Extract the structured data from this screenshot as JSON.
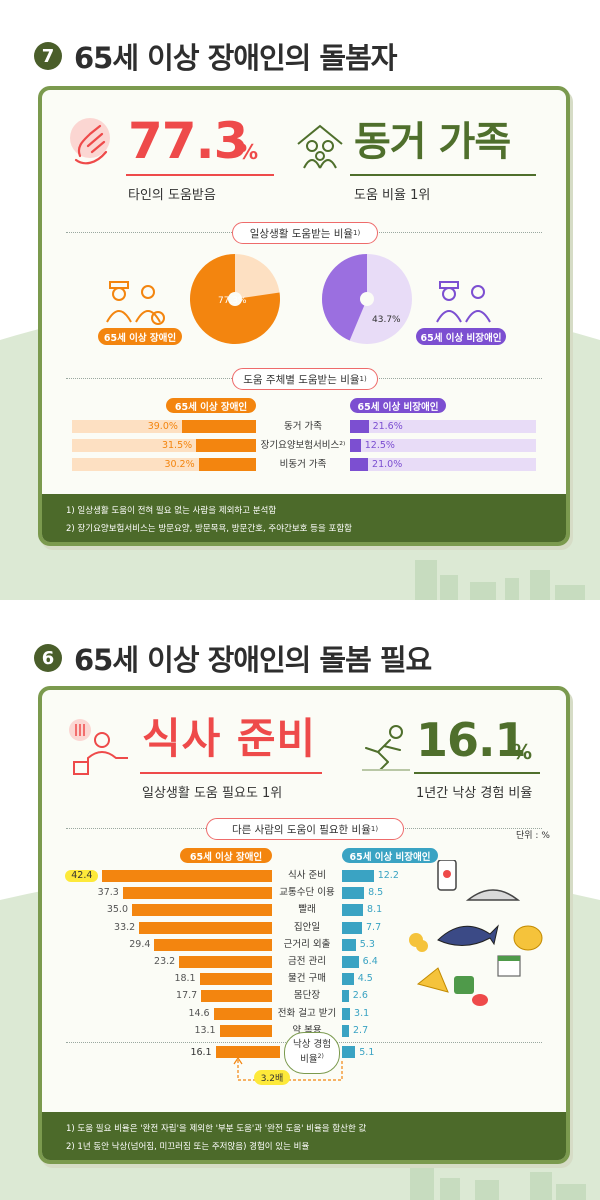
{
  "section7": {
    "number": "7",
    "title": "65세 이상 장애인의 돌봄자",
    "stat_left": {
      "value": "77.3",
      "unit": "%",
      "caption": "타인의 도움받음"
    },
    "stat_right": {
      "value": "동거 가족",
      "caption": "도움 비율 1위"
    },
    "pie_section_title": "일상생활 도움받는 비율",
    "pie_section_note": "1)",
    "pies": [
      {
        "label": "65세 이상 장애인",
        "value_label": "77.3%",
        "value": 77.3,
        "color": "#f3850f",
        "rest_color": "#fde0c2"
      },
      {
        "label": "65세 이상 비장애인",
        "value_label": "43.7%",
        "value": 43.7,
        "color": "#9b6fe0",
        "rest_color": "#e8dcf7"
      }
    ],
    "bar_section_title": "도움 주체별 도움받는 비율",
    "bar_section_note": "1)",
    "left_group_label": "65세 이상 장애인",
    "right_group_label": "65세 이상 비장애인",
    "footnotes": [
      "1)  일상생활 도움이 전혀 필요 없는 사람을 제외하고 분석함",
      "2)  장기요양보험서비스는 방문요양, 방문목욕, 방문간호, 주야간보호 등을 포함함"
    ]
  },
  "section6": {
    "number": "6",
    "title": "65세 이상 장애인의 돌봄 필요",
    "stat_left": {
      "value": "식사 준비",
      "caption": "일상생활 도움 필요도 1위"
    },
    "stat_right": {
      "value": "16.1",
      "unit": "%",
      "caption": "1년간 낙상 경험 비율"
    },
    "bar_section_title": "다른 사람의 도움이 필요한 비율",
    "bar_section_note": "1)",
    "unit_label": "단위 : %",
    "left_group_label": "65세 이상 장애인",
    "right_group_label": "65세 이상 비장애인",
    "fall": {
      "label_line1": "낙상 경험",
      "label_line2": "비율",
      "note": "2)",
      "left": "16.1",
      "right": "5.1",
      "ratio": "3.2배"
    },
    "footnotes": [
      "1)  도움 필요 비율은 '완전 자립'을 제외한 '부분 도움'과 '완전 도움' 비율을 합산한 값",
      "2)  1년 동안 낙상(넘어짐, 미끄러짐 또는 주저앉음) 경험이 있는 비율"
    ]
  },
  "chart_data": [
    {
      "type": "pie",
      "title": "일상생활 도움받는 비율",
      "series": [
        {
          "name": "65세 이상 장애인",
          "values": [
            77.3
          ]
        },
        {
          "name": "65세 이상 비장애인",
          "values": [
            43.7
          ]
        }
      ]
    },
    {
      "type": "bar",
      "title": "도움 주체별 도움받는 비율",
      "categories": [
        "동거 가족",
        "장기요양보험서비스²⁾",
        "비동거 가족"
      ],
      "series": [
        {
          "name": "65세 이상 장애인",
          "values": [
            39.0,
            31.5,
            30.2
          ],
          "labels": [
            "39.0%",
            "31.5%",
            "30.2%"
          ],
          "color": "#f3850f"
        },
        {
          "name": "65세 이상 비장애인",
          "values": [
            21.6,
            12.5,
            21.0
          ],
          "labels": [
            "21.6%",
            "12.5%",
            "21.0%"
          ],
          "color": "#7c4fd1"
        }
      ]
    },
    {
      "type": "bar",
      "title": "다른 사람의 도움이 필요한 비율",
      "categories": [
        "식사 준비",
        "교통수단 이용",
        "빨래",
        "집안일",
        "근거리 외출",
        "금전 관리",
        "물건 구매",
        "몸단장",
        "전화 걸고 받기",
        "약 복용"
      ],
      "series": [
        {
          "name": "65세 이상 장애인",
          "values": [
            42.4,
            37.3,
            35.0,
            33.2,
            29.4,
            23.2,
            18.1,
            17.7,
            14.6,
            13.1
          ],
          "labels": [
            "42.4",
            "37.3",
            "35.0",
            "33.2",
            "29.4",
            "23.2",
            "18.1",
            "17.7",
            "14.6",
            "13.1"
          ],
          "color": "#f3850f"
        },
        {
          "name": "65세 이상 비장애인",
          "values": [
            12.2,
            8.5,
            8.1,
            7.7,
            5.3,
            6.4,
            4.5,
            2.6,
            3.1,
            2.7
          ],
          "labels": [
            "12.2",
            "8.5",
            "8.1",
            "7.7",
            "5.3",
            "6.4",
            "4.5",
            "2.6",
            "3.1",
            "2.7"
          ],
          "color": "#3aa3c3"
        }
      ]
    }
  ]
}
